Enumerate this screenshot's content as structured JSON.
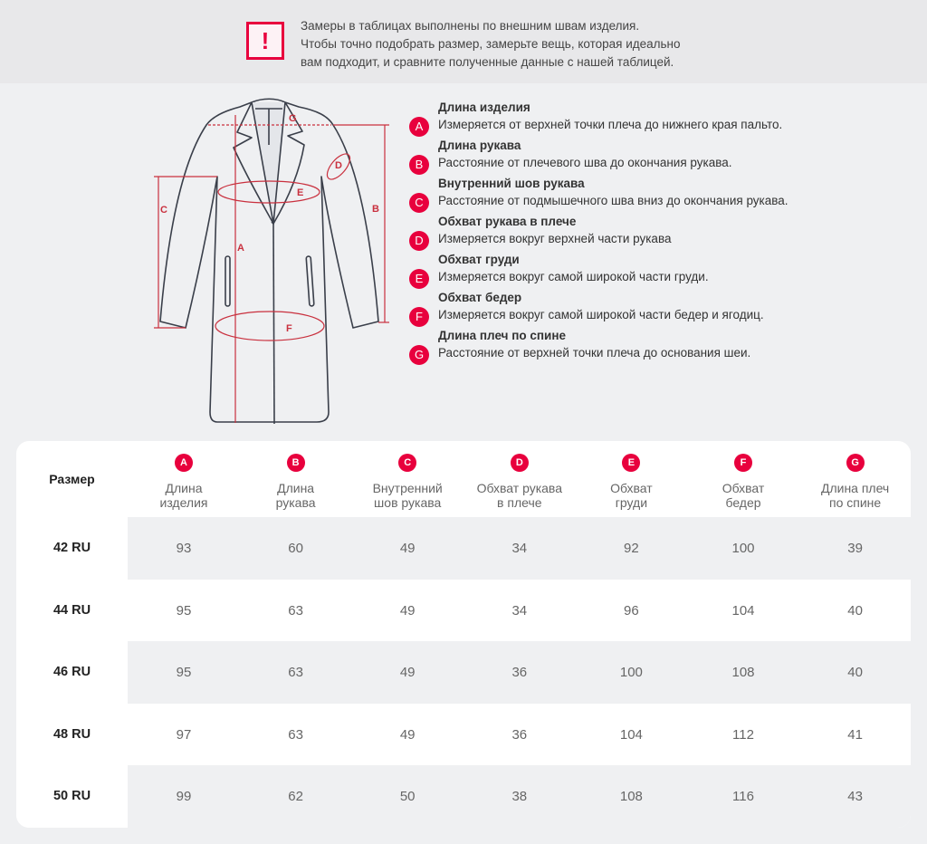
{
  "notice": {
    "icon": "exclamation-icon",
    "lines": [
      "Замеры в таблицах выполнены по внешним швам изделия.",
      "Чтобы точно подобрать размер, замерьте вещь, которая идеально",
      "вам подходит, и сравните полученные данные с нашей таблицей."
    ]
  },
  "colors": {
    "accent": "#e8003d",
    "measure_line": "#c9303e"
  },
  "diagram_labels": [
    "A",
    "B",
    "C",
    "D",
    "E",
    "F",
    "G"
  ],
  "legend": [
    {
      "badge": "A",
      "title": "Длина изделия",
      "desc": "Измеряется от верхней точки плеча до нижнего края пальто."
    },
    {
      "badge": "B",
      "title": "Длина рукава",
      "desc": "Расстояние от плечевого шва до окончания рукава."
    },
    {
      "badge": "C",
      "title": "Внутренний шов рукава",
      "desc": "Расстояние от подмышечного шва вниз до окончания рукава."
    },
    {
      "badge": "D",
      "title": "Обхват рукава в плече",
      "desc": "Измеряется вокруг верхней части рукава"
    },
    {
      "badge": "E",
      "title": "Обхват груди",
      "desc": "Измеряется вокруг самой широкой части груди."
    },
    {
      "badge": "F",
      "title": "Обхват бедер",
      "desc": "Измеряется вокруг самой широкой части бедер и ягодиц."
    },
    {
      "badge": "G",
      "title": "Длина плеч по спине",
      "desc": "Расстояние от верхней точки плеча до основания шеи."
    }
  ],
  "table": {
    "size_header": "Размер",
    "columns": [
      {
        "badge": "A",
        "line1": "Длина",
        "line2": "изделия"
      },
      {
        "badge": "B",
        "line1": "Длина",
        "line2": "рукава"
      },
      {
        "badge": "C",
        "line1": "Внутренний",
        "line2": "шов рукава"
      },
      {
        "badge": "D",
        "line1": "Обхват рукава",
        "line2": "в плече"
      },
      {
        "badge": "E",
        "line1": "Обхват",
        "line2": "груди"
      },
      {
        "badge": "F",
        "line1": "Обхват",
        "line2": "бедер"
      },
      {
        "badge": "G",
        "line1": "Длина плеч",
        "line2": "по спине"
      }
    ],
    "rows": [
      {
        "size": "42 RU",
        "values": [
          "93",
          "60",
          "49",
          "34",
          "92",
          "100",
          "39"
        ]
      },
      {
        "size": "44 RU",
        "values": [
          "95",
          "63",
          "49",
          "34",
          "96",
          "104",
          "40"
        ]
      },
      {
        "size": "46 RU",
        "values": [
          "95",
          "63",
          "49",
          "36",
          "100",
          "108",
          "40"
        ]
      },
      {
        "size": "48 RU",
        "values": [
          "97",
          "63",
          "49",
          "36",
          "104",
          "112",
          "41"
        ]
      },
      {
        "size": "50 RU",
        "values": [
          "99",
          "62",
          "50",
          "38",
          "108",
          "116",
          "43"
        ]
      }
    ]
  }
}
